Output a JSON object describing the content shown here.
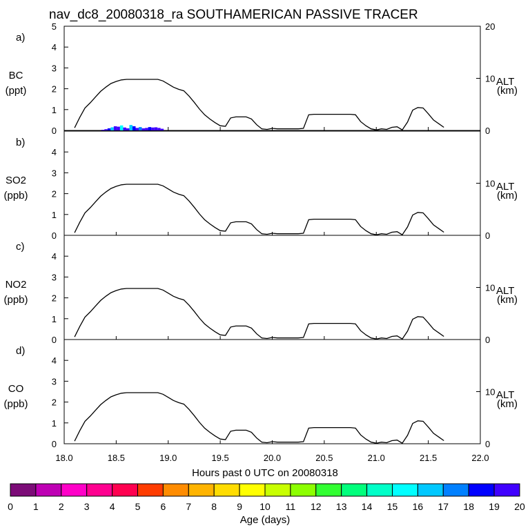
{
  "chart_data": {
    "type": "line",
    "title": "nav_dc8_20080318_ra SOUTHAMERICAN PASSIVE TRACER",
    "xlabel": "Hours past 0 UTC on 20080318",
    "xlim": [
      18.0,
      22.0
    ],
    "xticks": [
      "18.0",
      "18.5",
      "19.0",
      "19.5",
      "20.0",
      "20.5",
      "21.0",
      "21.5",
      "22.0"
    ],
    "right_axis": {
      "label": "ALT",
      "units": "(km)",
      "ylim": [
        0,
        20
      ],
      "ticks": [
        "0",
        "10",
        "20"
      ]
    },
    "altitude_km": {
      "x": [
        18.1,
        18.15,
        18.2,
        18.25,
        18.3,
        18.35,
        18.4,
        18.45,
        18.5,
        18.55,
        18.6,
        18.65,
        18.7,
        18.75,
        18.8,
        18.85,
        18.9,
        18.95,
        19.0,
        19.05,
        19.1,
        19.15,
        19.2,
        19.25,
        19.3,
        19.35,
        19.4,
        19.45,
        19.5,
        19.55,
        19.6,
        19.65,
        19.7,
        19.75,
        19.8,
        19.85,
        19.9,
        19.95,
        20.0,
        20.05,
        20.1,
        20.15,
        20.2,
        20.25,
        20.3,
        20.35,
        20.4,
        20.45,
        20.5,
        20.55,
        20.6,
        20.65,
        20.7,
        20.75,
        20.8,
        20.85,
        20.9,
        20.95,
        21.0,
        21.05,
        21.1,
        21.15,
        21.2,
        21.25,
        21.3,
        21.35,
        21.4,
        21.45,
        21.5,
        21.55,
        21.6,
        21.65
      ],
      "y": [
        0.5,
        2.5,
        4.3,
        5.3,
        6.4,
        7.5,
        8.3,
        9.0,
        9.4,
        9.7,
        9.8,
        9.8,
        9.8,
        9.8,
        9.8,
        9.8,
        9.8,
        9.5,
        8.9,
        8.3,
        7.9,
        7.6,
        6.6,
        5.4,
        4.1,
        3.0,
        2.2,
        1.5,
        0.9,
        0.8,
        2.4,
        2.6,
        2.6,
        2.6,
        2.2,
        1.1,
        0.3,
        0.2,
        0.4,
        0.3,
        0.3,
        0.3,
        0.3,
        0.3,
        0.4,
        3.0,
        3.1,
        3.1,
        3.1,
        3.1,
        3.1,
        3.1,
        3.1,
        3.1,
        3.0,
        1.7,
        0.9,
        0.3,
        0.1,
        0.3,
        0.2,
        0.6,
        0.7,
        0.1,
        1.6,
        3.9,
        4.4,
        4.3,
        3.2,
        2.0,
        1.3,
        0.6
      ]
    },
    "panels": [
      {
        "label": "a)",
        "species": "BC",
        "units": "(ppt)",
        "ylim": [
          0,
          5
        ],
        "yticks": [
          "0",
          "1",
          "2",
          "3",
          "4",
          "5"
        ]
      },
      {
        "label": "b)",
        "species": "SO2",
        "units": "(ppb)",
        "ylim": [
          0,
          5
        ],
        "yticks": [
          "0",
          "1",
          "2",
          "3",
          "4"
        ]
      },
      {
        "label": "c)",
        "species": "NO2",
        "units": "(ppb)",
        "ylim": [
          0,
          5
        ],
        "yticks": [
          "0",
          "1",
          "2",
          "3",
          "4"
        ]
      },
      {
        "label": "d)",
        "species": "CO",
        "units": "(ppb)",
        "ylim": [
          0,
          5
        ],
        "yticks": [
          "0",
          "1",
          "2",
          "3",
          "4"
        ]
      }
    ],
    "bc_tracer_bars": {
      "x": [
        18.37,
        18.4,
        18.43,
        18.46,
        18.49,
        18.52,
        18.55,
        18.58,
        18.61,
        18.64,
        18.67,
        18.7,
        18.73,
        18.76,
        18.79,
        18.82,
        18.85,
        18.88,
        18.91,
        18.94
      ],
      "y": [
        0.03,
        0.06,
        0.1,
        0.15,
        0.2,
        0.18,
        0.24,
        0.14,
        0.1,
        0.26,
        0.2,
        0.12,
        0.16,
        0.1,
        0.12,
        0.16,
        0.14,
        0.15,
        0.12,
        0.08
      ],
      "age_days": [
        19,
        19,
        18,
        16,
        19,
        19,
        15,
        19,
        19,
        16,
        18,
        19,
        17,
        19,
        19,
        18,
        19,
        19,
        19,
        19
      ]
    },
    "colorbar": {
      "label": "Age (days)",
      "ticks": [
        "0",
        "1",
        "2",
        "3",
        "4",
        "5",
        "6",
        "7",
        "8",
        "9",
        "10",
        "11",
        "12",
        "13",
        "14",
        "15",
        "16",
        "17",
        "18",
        "19",
        "20"
      ],
      "colors": [
        "#7c0c78",
        "#be00b4",
        "#ff00c8",
        "#ff0090",
        "#ff0050",
        "#ff3c00",
        "#ff8c00",
        "#ffb400",
        "#ffdc00",
        "#ffff00",
        "#c8ff00",
        "#8cff00",
        "#32ff32",
        "#00ff7c",
        "#00ffc8",
        "#00ffff",
        "#00c8ff",
        "#0080ff",
        "#0000ff",
        "#4000ff"
      ]
    }
  }
}
